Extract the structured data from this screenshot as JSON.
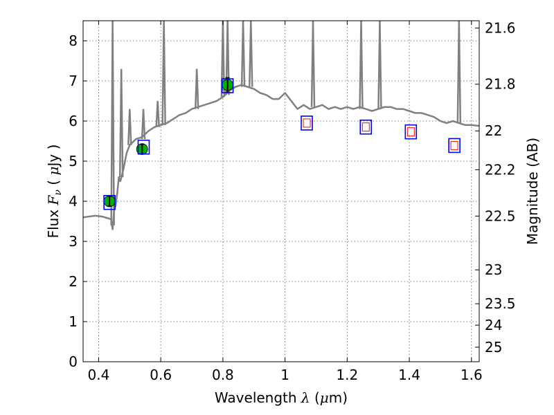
{
  "chart_data": {
    "type": "scatter",
    "xlim": [
      0.35,
      1.625
    ],
    "ylim": [
      0,
      8.5
    ],
    "grid": true,
    "xlabel": {
      "prefix": "Wavelength ",
      "symbol": "λ",
      "unit_open": " (",
      "unit_mu": "μ",
      "unit_close": "m)"
    },
    "ylabel": {
      "prefix": "Flux ",
      "symbol": "F",
      "subscript": "ν",
      "unit_open": " ( ",
      "unit_mu": "μ",
      "unit_close": "Jy )"
    },
    "y2label": "Magnitude (AB)",
    "x_ticks": [
      {
        "value": 0.4,
        "label": "0.4"
      },
      {
        "value": 0.6,
        "label": "0.6"
      },
      {
        "value": 0.8,
        "label": "0.8"
      },
      {
        "value": 1.0,
        "label": "1"
      },
      {
        "value": 1.2,
        "label": "1.2"
      },
      {
        "value": 1.4,
        "label": "1.4"
      },
      {
        "value": 1.6,
        "label": "1.6"
      }
    ],
    "y_ticks": [
      {
        "value": 0,
        "label": "0"
      },
      {
        "value": 1,
        "label": "1"
      },
      {
        "value": 2,
        "label": "2"
      },
      {
        "value": 3,
        "label": "3"
      },
      {
        "value": 4,
        "label": "4"
      },
      {
        "value": 5,
        "label": "5"
      },
      {
        "value": 6,
        "label": "6"
      },
      {
        "value": 7,
        "label": "7"
      },
      {
        "value": 8,
        "label": "8"
      }
    ],
    "mag_ticks": [
      {
        "value": 21.6,
        "label": "21.6"
      },
      {
        "value": 21.8,
        "label": "21.8"
      },
      {
        "value": 22.0,
        "label": "22"
      },
      {
        "value": 22.2,
        "label": "22.2"
      },
      {
        "value": 22.5,
        "label": "22.5"
      },
      {
        "value": 23.0,
        "label": "23"
      },
      {
        "value": 23.5,
        "label": "23.5"
      },
      {
        "value": 24.0,
        "label": "24"
      },
      {
        "value": 25.0,
        "label": "25"
      }
    ],
    "series": [
      {
        "name": "model spectrum",
        "kind": "line",
        "color": "#808080",
        "x": [
          0.35,
          0.37,
          0.39,
          0.41,
          0.43,
          0.44,
          0.445,
          0.45,
          0.455,
          0.46,
          0.465,
          0.47,
          0.48,
          0.49,
          0.5,
          0.52,
          0.54,
          0.56,
          0.58,
          0.6,
          0.62,
          0.64,
          0.66,
          0.68,
          0.7,
          0.72,
          0.74,
          0.76,
          0.78,
          0.8,
          0.82,
          0.84,
          0.86,
          0.88,
          0.9,
          0.92,
          0.94,
          0.96,
          0.98,
          1.0,
          1.02,
          1.04,
          1.06,
          1.08,
          1.1,
          1.12,
          1.14,
          1.16,
          1.18,
          1.2,
          1.22,
          1.24,
          1.26,
          1.28,
          1.3,
          1.32,
          1.34,
          1.36,
          1.38,
          1.4,
          1.42,
          1.44,
          1.46,
          1.48,
          1.5,
          1.52,
          1.54,
          1.56,
          1.58,
          1.6,
          1.625
        ],
        "y": [
          3.6,
          3.62,
          3.64,
          3.62,
          3.58,
          3.55,
          3.3,
          3.8,
          3.9,
          4.2,
          4.6,
          4.5,
          4.8,
          5.2,
          5.4,
          5.55,
          5.6,
          5.75,
          5.85,
          5.9,
          5.95,
          6.05,
          6.15,
          6.2,
          6.3,
          6.35,
          6.4,
          6.45,
          6.5,
          6.6,
          6.75,
          6.85,
          6.9,
          6.85,
          6.8,
          6.7,
          6.65,
          6.55,
          6.55,
          6.7,
          6.5,
          6.3,
          6.4,
          6.3,
          6.35,
          6.4,
          6.3,
          6.35,
          6.3,
          6.35,
          6.3,
          6.35,
          6.3,
          6.25,
          6.3,
          6.35,
          6.35,
          6.3,
          6.3,
          6.25,
          6.2,
          6.2,
          6.15,
          6.1,
          6.0,
          5.95,
          6.0,
          5.95,
          5.9,
          5.9,
          5.88
        ]
      },
      {
        "name": "emission lines",
        "kind": "spikes",
        "color": "#808080",
        "lines": [
          {
            "x": 0.445,
            "base": 3.4,
            "peak": 8.5
          },
          {
            "x": 0.473,
            "base": 4.6,
            "peak": 7.3
          },
          {
            "x": 0.5,
            "base": 5.4,
            "peak": 6.3
          },
          {
            "x": 0.544,
            "base": 5.55,
            "peak": 6.3
          },
          {
            "x": 0.59,
            "base": 5.85,
            "peak": 6.5
          },
          {
            "x": 0.61,
            "base": 5.9,
            "peak": 8.5
          },
          {
            "x": 0.716,
            "base": 6.3,
            "peak": 7.3
          },
          {
            "x": 0.8,
            "base": 6.6,
            "peak": 8.5
          },
          {
            "x": 0.815,
            "base": 6.65,
            "peak": 8.5
          },
          {
            "x": 0.865,
            "base": 6.85,
            "peak": 8.5
          },
          {
            "x": 0.89,
            "base": 6.85,
            "peak": 8.5
          },
          {
            "x": 1.09,
            "base": 6.35,
            "peak": 8.5
          },
          {
            "x": 1.245,
            "base": 6.3,
            "peak": 8.5
          },
          {
            "x": 1.305,
            "base": 6.3,
            "peak": 8.5
          },
          {
            "x": 1.56,
            "base": 5.95,
            "peak": 8.5
          }
        ]
      },
      {
        "name": "measured photometry",
        "kind": "points",
        "color": "#00b000",
        "x": [
          0.435,
          0.54,
          0.815
        ],
        "y": [
          4.0,
          5.3,
          6.9
        ],
        "yerr": [
          0.12,
          0.12,
          0.18
        ]
      },
      {
        "name": "model photometry",
        "kind": "squares",
        "color": "#0000ff",
        "x": [
          0.435,
          0.545,
          0.815,
          1.07,
          1.26,
          1.405,
          1.545
        ],
        "y": [
          3.97,
          5.35,
          6.88,
          5.95,
          5.85,
          5.73,
          5.39
        ]
      },
      {
        "name": "predicted (no data)",
        "kind": "open-squares",
        "color": "#ff0000",
        "x": [
          1.07,
          1.26,
          1.405,
          1.545
        ],
        "y": [
          5.95,
          5.85,
          5.73,
          5.39
        ]
      }
    ]
  }
}
